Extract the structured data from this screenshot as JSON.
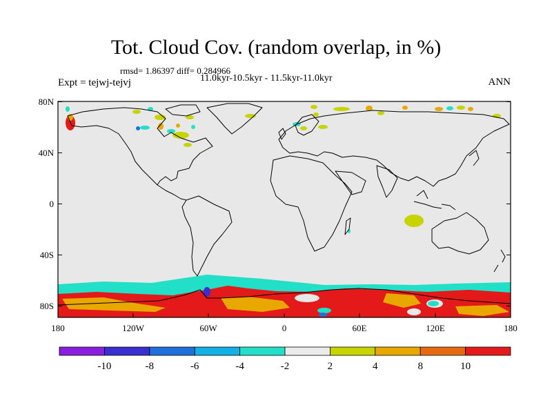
{
  "header": {
    "title": "Tot. Cloud Cov. (random overlap, in %)",
    "stats": "rmsd= 1.86397  diff= 0.284966",
    "period": "11.0kyr-10.5kyr - 11.5kyr-11.0kyr",
    "experiment": "Expt = tejwj-tejvj",
    "season": "ANN"
  },
  "axes": {
    "lat_ticks": [
      "80N",
      "40N",
      "0",
      "40S",
      "80S"
    ],
    "lon_ticks": [
      "180",
      "120W",
      "60W",
      "0",
      "60E",
      "120E",
      "180"
    ]
  },
  "colorbar": {
    "labels": [
      "-10",
      "-8",
      "-6",
      "-4",
      "-2",
      "2",
      "4",
      "8",
      "10"
    ],
    "colors": [
      "#8a1ee0",
      "#3a2ed0",
      "#1f6fdc",
      "#12b0e6",
      "#22e0c8",
      "#ebebeb",
      "#c8d400",
      "#e8a800",
      "#e86a10",
      "#e41a1a"
    ]
  },
  "colors": {
    "land_line": "#000000",
    "background": "#e8e8e8",
    "cyan": "#22e0c8",
    "yellow": "#c8d400",
    "orange": "#e8a800",
    "red": "#e41a1a",
    "blue": "#1f6fdc"
  }
}
